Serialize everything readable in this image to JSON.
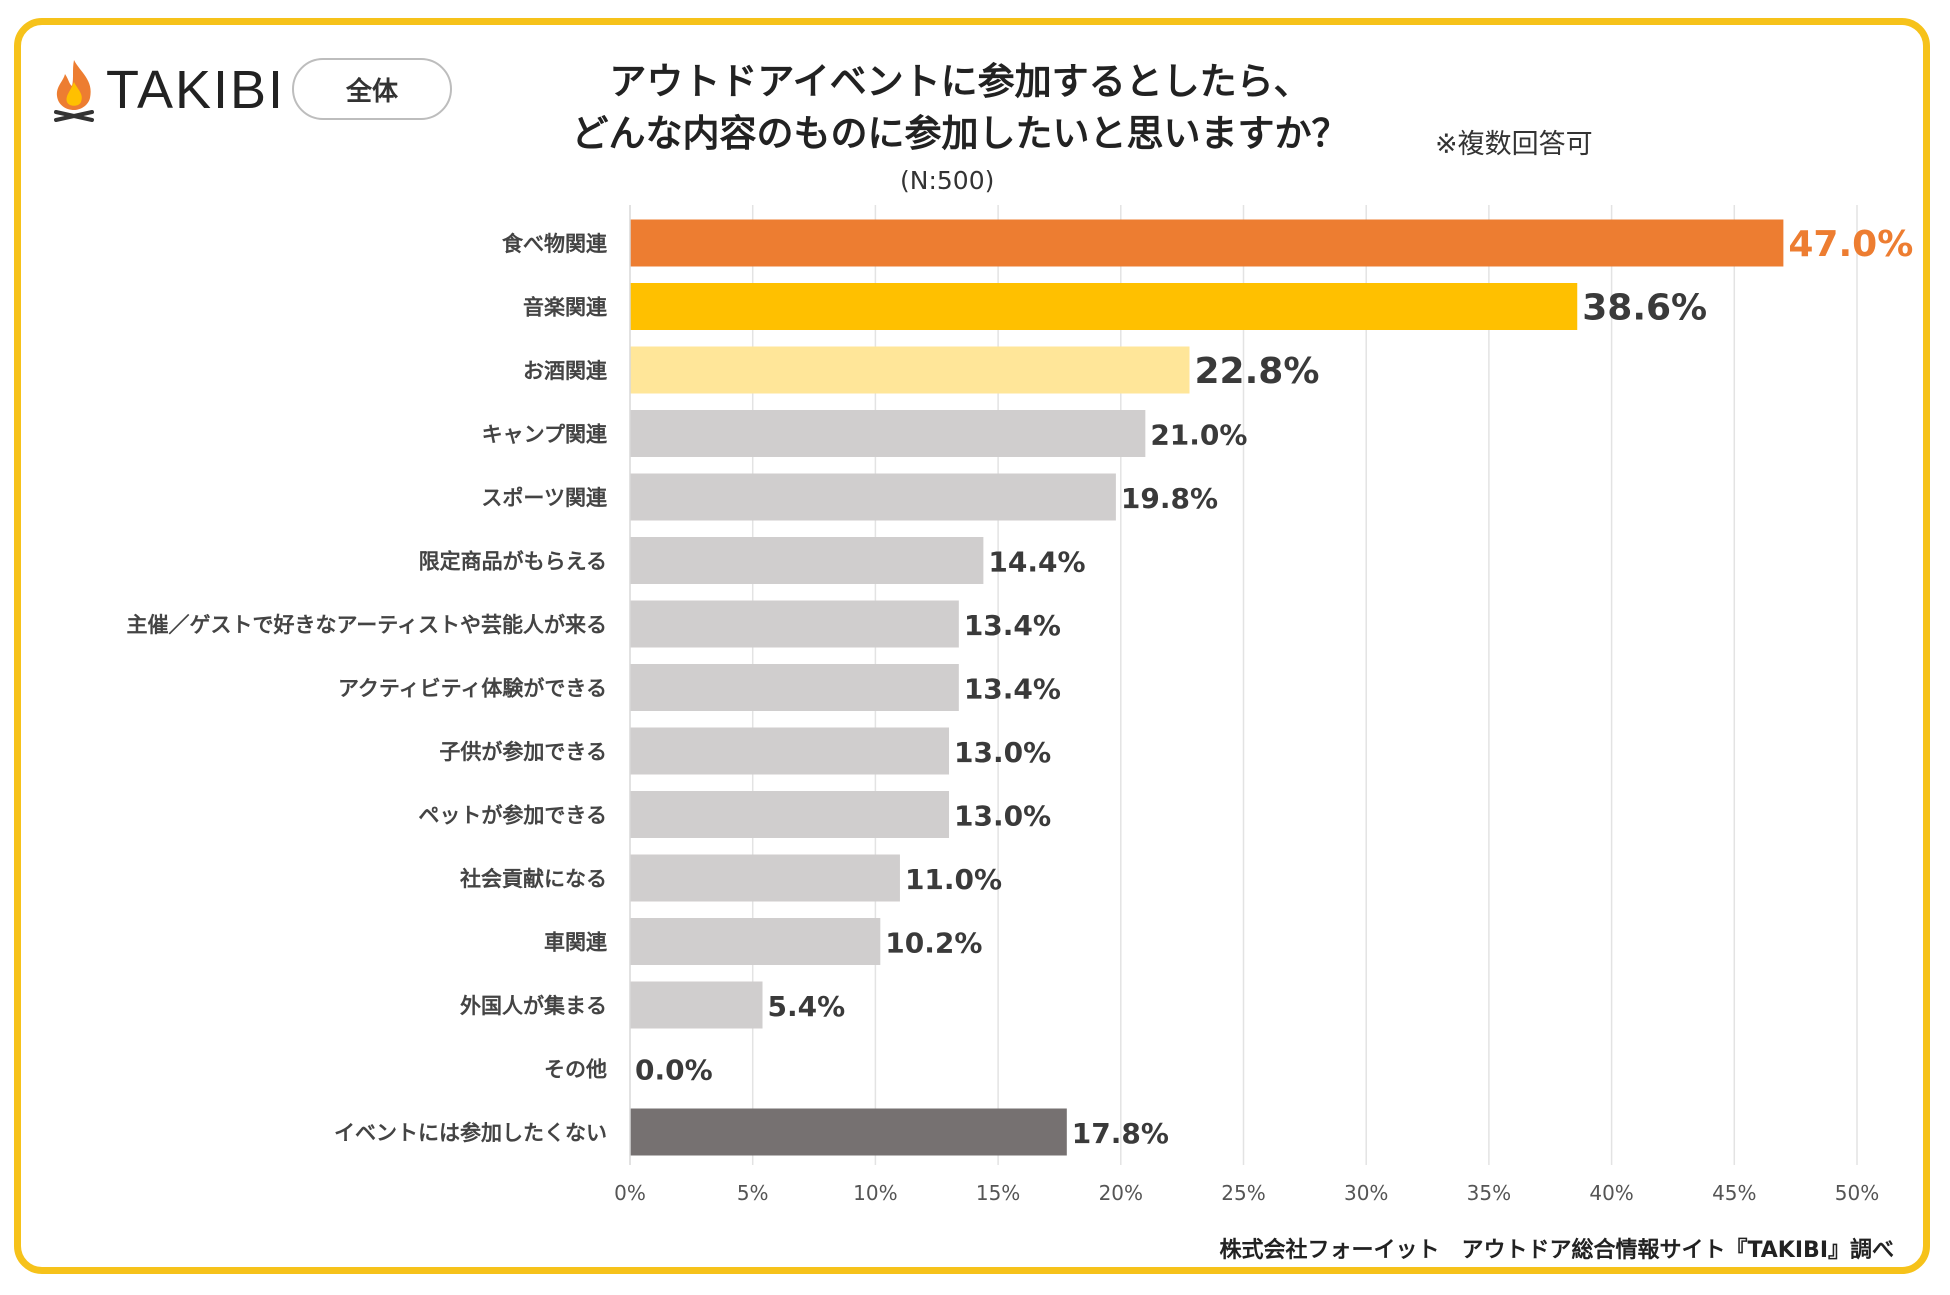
{
  "header": {
    "brand": "TAKIBI",
    "segment_label": "全体",
    "title_line1": "アウトドアイベントに参加するとしたら、",
    "title_line2": "どんな内容のものに参加したいと思いますか？",
    "note": "※複数回答可",
    "sample_size": "(N:500)"
  },
  "footer": {
    "source": "株式会社フォーイット　アウトドア総合情報サイト『TAKIBI』調べ"
  },
  "colors": {
    "frame": "#f6c21a",
    "rank1": "#ed7d31",
    "rank2": "#ffc000",
    "rank3": "#ffe699",
    "other": "#d0cece",
    "none": "#767171",
    "rank1_label": "#ed7d31"
  },
  "icons": {
    "logo": "campfire-icon"
  },
  "chart_data": {
    "type": "bar",
    "orientation": "horizontal",
    "title": "アウトドアイベントに参加するとしたら、どんな内容のものに参加したいと思いますか？",
    "categories": [
      "食べ物関連",
      "音楽関連",
      "お酒関連",
      "キャンプ関連",
      "スポーツ関連",
      "限定商品がもらえる",
      "主催／ゲストで好きなアーティストや芸能人が来る",
      "アクティビティ体験ができる",
      "子供が参加できる",
      "ペットが参加できる",
      "社会貢献になる",
      "車関連",
      "外国人が集まる",
      "その他",
      "イベントには参加したくない"
    ],
    "values": [
      47.0,
      38.6,
      22.8,
      21.0,
      19.8,
      14.4,
      13.4,
      13.4,
      13.0,
      13.0,
      11.0,
      10.2,
      5.4,
      0.0,
      17.8
    ],
    "value_labels": [
      "47.0%",
      "38.6%",
      "22.8%",
      "21.0%",
      "19.8%",
      "14.4%",
      "13.4%",
      "13.4%",
      "13.0%",
      "13.0%",
      "11.0%",
      "10.2%",
      "5.4%",
      "0.0%",
      "17.8%"
    ],
    "bar_colors": [
      "#ed7d31",
      "#ffc000",
      "#ffe699",
      "#d0cece",
      "#d0cece",
      "#d0cece",
      "#d0cece",
      "#d0cece",
      "#d0cece",
      "#d0cece",
      "#d0cece",
      "#d0cece",
      "#d0cece",
      "#d0cece",
      "#767171"
    ],
    "xlim": [
      0,
      50
    ],
    "x_ticks": [
      0,
      5,
      10,
      15,
      20,
      25,
      30,
      35,
      40,
      45,
      50
    ],
    "x_tick_labels": [
      "0%",
      "5%",
      "10%",
      "15%",
      "20%",
      "25%",
      "30%",
      "35%",
      "40%",
      "45%",
      "50%"
    ],
    "xlabel": "",
    "ylabel": "",
    "grid": "vertical",
    "legend": "none"
  }
}
